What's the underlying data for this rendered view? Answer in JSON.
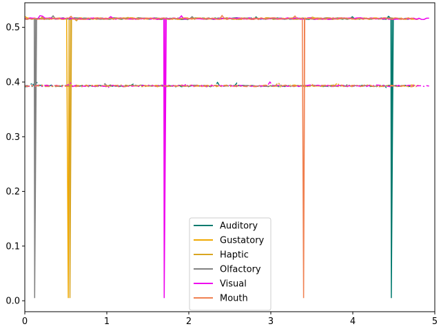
{
  "chart_data": {
    "type": "line",
    "title": "",
    "xlabel": "",
    "ylabel": "",
    "xlim": [
      0,
      5
    ],
    "ylim": [
      -0.02,
      0.545
    ],
    "xticks": [
      0,
      1,
      2,
      3,
      4,
      5
    ],
    "xtick_labels": [
      "0",
      "1",
      "2",
      "3",
      "4",
      "5"
    ],
    "yticks": [
      0.0,
      0.1,
      0.2,
      0.3,
      0.4,
      0.5
    ],
    "ytick_labels": [
      "0.0",
      "0.1",
      "0.2",
      "0.3",
      "0.4",
      "0.5"
    ],
    "grid": false,
    "legend_position": "lower-center",
    "levels": {
      "upper": 0.516,
      "lower": 0.393,
      "dip_bottom": 0.005
    },
    "series": [
      {
        "name": "Auditory",
        "color": "#007a6e",
        "dip_x": 4.47,
        "x_end": 4.7,
        "upper_x_start": 0.0,
        "lower_x_start": 0.0
      },
      {
        "name": "Gustatory",
        "color": "#f0a800",
        "dip_x": 0.53,
        "x_end": 4.8,
        "upper_x_start": 0.0,
        "lower_x_start": 0.0
      },
      {
        "name": "Haptic",
        "color": "#d9a520",
        "dip_x": 0.55,
        "x_end": 4.8,
        "upper_x_start": 0.0,
        "lower_x_start": 0.0
      },
      {
        "name": "Olfactory",
        "color": "#808080",
        "dip_x": 0.12,
        "x_end": 4.6,
        "upper_x_start": 0.0,
        "lower_x_start": 0.0
      },
      {
        "name": "Visual",
        "color": "#ee00ee",
        "dip_x": 1.7,
        "x_end": 4.93,
        "upper_x_start": 0.0,
        "lower_x_start": 0.0
      },
      {
        "name": "Mouth",
        "color": "#f08050",
        "dip_x": 3.4,
        "x_end": 4.75,
        "upper_x_start": 0.0,
        "lower_x_start": 0.0
      }
    ]
  }
}
